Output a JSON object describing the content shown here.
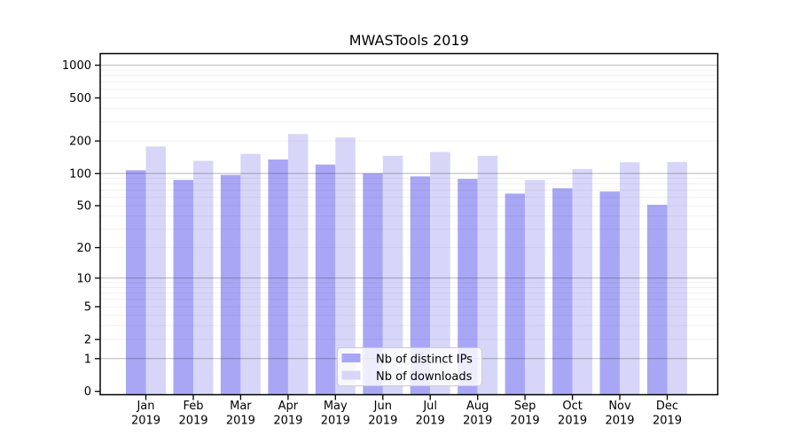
{
  "chart_data": {
    "type": "bar",
    "title": "MWASTools 2019",
    "categories": [
      "Jan",
      "Feb",
      "Mar",
      "Apr",
      "May",
      "Jun",
      "Jul",
      "Aug",
      "Sep",
      "Oct",
      "Nov",
      "Dec"
    ],
    "x_year_label": "2019",
    "xlabel": "",
    "ylabel": "",
    "yscale": "log1p",
    "y_ticks": [
      0,
      1,
      2,
      5,
      10,
      20,
      50,
      100,
      200,
      500,
      1000
    ],
    "ylim": [
      0,
      1000
    ],
    "grid": true,
    "legend": {
      "position": "inside-bottom-center",
      "entries": [
        "Nb of distinct IPs",
        "Nb of downloads"
      ]
    },
    "series": [
      {
        "name": "Nb of distinct IPs",
        "key": "distinct-ips",
        "color": "#a9a7f5",
        "values": [
          107,
          87,
          97,
          135,
          121,
          100,
          94,
          89,
          65,
          73,
          68,
          51
        ]
      },
      {
        "name": "Nb of downloads",
        "key": "downloads",
        "color": "#d7d6f9",
        "values": [
          178,
          131,
          152,
          232,
          216,
          146,
          158,
          146,
          87,
          110,
          127,
          128
        ]
      }
    ]
  },
  "colors": {
    "background": "#ffffff",
    "spine": "#000000",
    "major_grid": "rgba(0,0,0,0.28)",
    "minor_grid": "rgba(0,0,0,0.06)",
    "legend_bg": "rgba(255,255,255,0.8)",
    "legend_border": "#cccccc",
    "text": "#000000"
  }
}
